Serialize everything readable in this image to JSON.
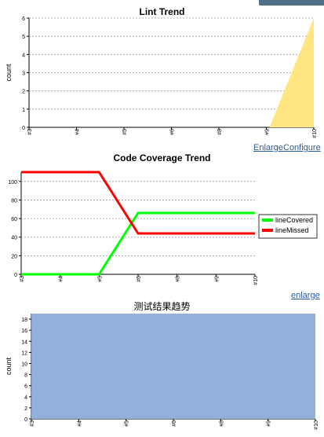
{
  "top_button_label": "",
  "charts": [
    {
      "title": "Lint Trend",
      "type": "area",
      "ylabel": "count",
      "categories": [
        "#3",
        "#4",
        "#5",
        "#6",
        "#8",
        "#9",
        "#10"
      ],
      "series": [
        {
          "values": [
            0,
            0,
            0,
            0,
            0,
            0,
            6
          ]
        }
      ],
      "ylim": [
        0,
        6
      ],
      "color": "#ffe680",
      "links": [
        "Enlarge",
        "Configure"
      ]
    },
    {
      "title": "Code Coverage Trend",
      "type": "line",
      "ylabel": "",
      "categories": [
        "#3",
        "#4",
        "#5",
        "#6",
        "#8",
        "#9",
        "#10"
      ],
      "series": [
        {
          "name": "lineCovered",
          "values": [
            0,
            0,
            0,
            66,
            66,
            66,
            66
          ],
          "color": "#00ff00"
        },
        {
          "name": "lineMissed",
          "values": [
            110,
            110,
            110,
            44,
            44,
            44,
            44
          ],
          "color": "#ff0000"
        }
      ],
      "ylim": [
        0,
        110
      ],
      "legend": "right",
      "links": [
        "enlarge"
      ]
    },
    {
      "title": "测试结果趋势",
      "type": "area",
      "ylabel": "count",
      "categories": [
        "#3",
        "#4",
        "#5",
        "#6",
        "#8",
        "#9",
        "#10"
      ],
      "series": [
        {
          "values": [
            19,
            19,
            19,
            19,
            19,
            19,
            19
          ]
        }
      ],
      "ylim": [
        0,
        19
      ],
      "color": "#8badd8"
    }
  ]
}
